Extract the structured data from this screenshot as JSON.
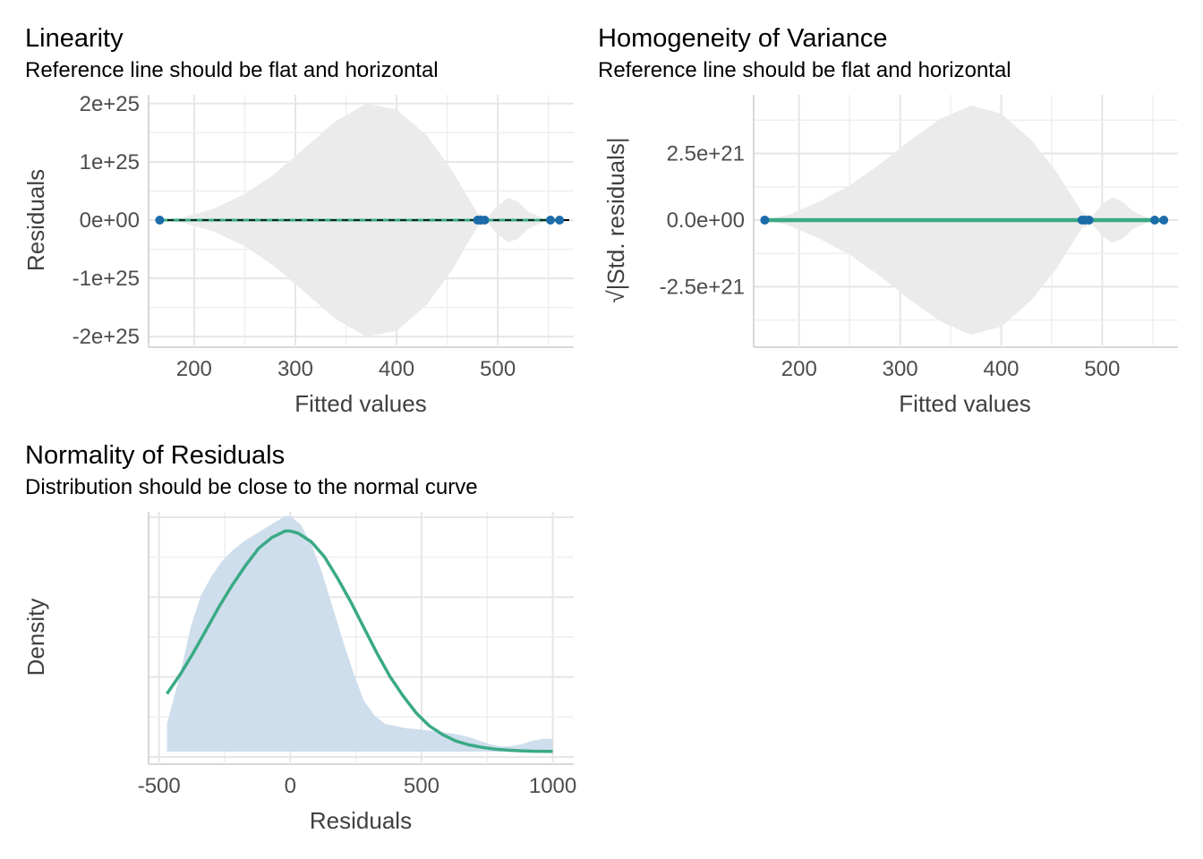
{
  "colors": {
    "band": "#ebebeb",
    "fit_line": "#3aaa85",
    "points": "#1b6ca8",
    "density_fill": "#cfdeec",
    "normal_curve": "#3aaa85",
    "reference_line": "#000000"
  },
  "chart_data": [
    {
      "type": "scatter",
      "title": "Linearity",
      "subtitle": "Reference line should be flat and horizontal",
      "xlabel": "Fitted values",
      "ylabel": "Residuals",
      "xlim": [
        155,
        575
      ],
      "ylim": [
        -2.15e+25,
        2.15e+25
      ],
      "x_ticks": [
        200,
        300,
        400,
        500
      ],
      "x_tick_labels": [
        "200",
        "300",
        "400",
        "500"
      ],
      "y_ticks": [
        2e+25,
        1e+25,
        0,
        -1e+25,
        -2e+25
      ],
      "y_tick_labels": [
        "2e+25",
        "1e+25",
        "0e+00",
        "-1e+25",
        "-2e+25"
      ],
      "reference_line": {
        "y": 0,
        "style": "dashed"
      },
      "points": [
        {
          "x": 166,
          "y": 0
        },
        {
          "x": 480,
          "y": 0
        },
        {
          "x": 483,
          "y": 0
        },
        {
          "x": 487,
          "y": 0
        },
        {
          "x": 552,
          "y": 0
        },
        {
          "x": 561,
          "y": 0
        }
      ],
      "confidence_band": [
        [
          166,
          0
        ],
        [
          190,
          5e+23
        ],
        [
          220,
          2e+24
        ],
        [
          250,
          4.5e+24
        ],
        [
          280,
          8e+24
        ],
        [
          310,
          1.25e+25
        ],
        [
          340,
          1.7e+25
        ],
        [
          370,
          2e+25
        ],
        [
          400,
          1.9e+25
        ],
        [
          430,
          1.45e+25
        ],
        [
          455,
          8.5e+24
        ],
        [
          470,
          4e+24
        ],
        [
          480,
          1.2e+24
        ],
        [
          490,
          5e+23
        ],
        [
          500,
          2.5e+24
        ],
        [
          510,
          3.8e+24
        ],
        [
          520,
          3.2e+24
        ],
        [
          530,
          1.5e+24
        ],
        [
          545,
          3e+23
        ],
        [
          561,
          0
        ]
      ],
      "grid": true
    },
    {
      "type": "scatter",
      "title": "Homogeneity of Variance",
      "subtitle": "Reference line should be flat and horizontal",
      "xlabel": "Fitted values",
      "ylabel": "√|Std. residuals|",
      "xlim": [
        155,
        575
      ],
      "ylim": [
        -4.7e+21,
        4.7e+21
      ],
      "x_ticks": [
        200,
        300,
        400,
        500
      ],
      "x_tick_labels": [
        "200",
        "300",
        "400",
        "500"
      ],
      "y_ticks": [
        2.5e+21,
        0,
        -2.5e+21
      ],
      "y_tick_labels": [
        "2.5e+21",
        "0.0e+00",
        "-2.5e+21"
      ],
      "points": [
        {
          "x": 166,
          "y": 0
        },
        {
          "x": 480,
          "y": 0
        },
        {
          "x": 483,
          "y": 0
        },
        {
          "x": 487,
          "y": 0
        },
        {
          "x": 552,
          "y": 0
        },
        {
          "x": 561,
          "y": 0
        }
      ],
      "confidence_band": [
        [
          166,
          0
        ],
        [
          190,
          2e+20
        ],
        [
          220,
          7e+20
        ],
        [
          250,
          1.3e+21
        ],
        [
          280,
          2.1e+21
        ],
        [
          310,
          3e+21
        ],
        [
          340,
          3.8e+21
        ],
        [
          370,
          4.3e+21
        ],
        [
          400,
          4e+21
        ],
        [
          430,
          3e+21
        ],
        [
          455,
          1.8e+21
        ],
        [
          470,
          9e+20
        ],
        [
          480,
          3e+20
        ],
        [
          490,
          1.5e+20
        ],
        [
          500,
          6e+20
        ],
        [
          510,
          8.5e+20
        ],
        [
          520,
          7e+20
        ],
        [
          530,
          3.5e+20
        ],
        [
          545,
          8e+19
        ],
        [
          561,
          0
        ]
      ],
      "grid": true
    },
    {
      "type": "area",
      "title": "Normality of Residuals",
      "subtitle": "Distribution should be close to the normal curve",
      "xlabel": "Residuals",
      "ylabel": "Density",
      "xlim": [
        -540,
        1080
      ],
      "ylim": [
        -5e-05,
        0.00112
      ],
      "x_ticks": [
        -500,
        0,
        500,
        1000
      ],
      "x_tick_labels": [
        "-500",
        "0",
        "500",
        "1000"
      ],
      "density": {
        "x": [
          -470,
          -420,
          -380,
          -340,
          -300,
          -260,
          -220,
          -180,
          -140,
          -100,
          -60,
          -20,
          0,
          40,
          80,
          120,
          160,
          200,
          240,
          280,
          320,
          360,
          400,
          440,
          480,
          520,
          560,
          600,
          640,
          680,
          720,
          760,
          800,
          840,
          880,
          920,
          960,
          1000
        ],
        "y": [
          0.00013,
          0.00036,
          0.00058,
          0.00073,
          0.00082,
          0.00089,
          0.00094,
          0.00098,
          0.00101,
          0.00104,
          0.00107,
          0.0011,
          0.0011,
          0.00106,
          0.00097,
          0.00084,
          0.00068,
          0.00052,
          0.00037,
          0.00024,
          0.00017,
          0.00013,
          0.00012,
          0.00011,
          0.000105,
          0.0001,
          9.4e-05,
          8.8e-05,
          8e-05,
          6.8e-05,
          5.2e-05,
          3.5e-05,
          2.5e-05,
          2.5e-05,
          3.5e-05,
          5e-05,
          6e-05,
          6e-05
        ]
      },
      "normal_curve": {
        "x": [
          -470,
          -420,
          -370,
          -320,
          -270,
          -220,
          -170,
          -120,
          -70,
          -20,
          0,
          30,
          80,
          130,
          180,
          230,
          280,
          330,
          380,
          430,
          480,
          530,
          580,
          630,
          680,
          730,
          780,
          830,
          880,
          930,
          980,
          1000
        ],
        "y": [
          0.00027,
          0.00036,
          0.00046,
          0.00057,
          0.00068,
          0.00078,
          0.00087,
          0.00095,
          0.001,
          0.00103,
          0.00103,
          0.00102,
          0.00098,
          0.00091,
          0.00081,
          0.0007,
          0.00058,
          0.00046,
          0.00035,
          0.00026,
          0.00018,
          0.00012,
          8e-05,
          5e-05,
          3.2e-05,
          2e-05,
          1.2e-05,
          7e-06,
          4e-06,
          2e-06,
          1e-06,
          1e-06
        ]
      },
      "grid": true
    }
  ]
}
